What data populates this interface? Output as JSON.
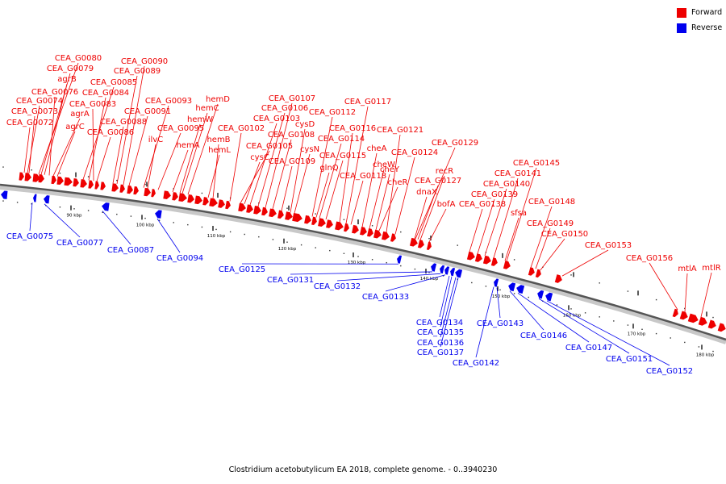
{
  "legend": {
    "forward_label": "Forward",
    "reverse_label": "Reverse",
    "forward_color": "#ee0000",
    "reverse_color": "#0000ee"
  },
  "caption": "Clostridium acetobutylicum EA 2018, complete genome. - 0..3940230",
  "axis": {
    "tick_labels": [
      "90 kbp",
      "100 kbp",
      "110 kbp",
      "120 kbp",
      "130 kbp",
      "140 kbp",
      "150 kbp",
      "160 kbp",
      "170 kbp",
      "180 kbp"
    ]
  },
  "forward_genes": [
    "CEA_G0080",
    "CEA_G0079",
    "agrB",
    "CEA_G0076",
    "CEA_G0074",
    "CEA_G0073",
    "CEA_G0072",
    "agrA",
    "agrC",
    "CEA_G0085",
    "CEA_G0084",
    "CEA_G0083",
    "CEA_G0086",
    "CEA_G0088",
    "CEA_G0090",
    "CEA_G0089",
    "CEA_G0091",
    "CEA_G0093",
    "CEA_G0095",
    "ilvC",
    "hemD",
    "hemC",
    "hemW",
    "hemB",
    "hemA",
    "hemL",
    "CEA_G0107",
    "CEA_G0106",
    "CEA_G0103",
    "CEA_G0102",
    "CEA_G0105",
    "cysC",
    "CEA_G0108",
    "CEA_G0109",
    "cysD",
    "cysN",
    "CEA_G0112",
    "CEA_G0114",
    "CEA_G0116",
    "CEA_G0117",
    "glnQ",
    "CEA_G0115",
    "CEA_G0118",
    "cheA",
    "cheW",
    "cheY",
    "cheR",
    "CEA_G0121",
    "CEA_G0124",
    "CEA_G0129",
    "recR",
    "CEA_G0127",
    "dnaX",
    "bofA",
    "CEA_G0138",
    "CEA_G0139",
    "CEA_G0140",
    "CEA_G0141",
    "CEA_G0145",
    "sfsa",
    "CEA_G0148",
    "CEA_G0149",
    "CEA_G0150",
    "CEA_G0153",
    "CEA_G0156",
    "mtlA",
    "mtlR"
  ],
  "reverse_genes": [
    "CEA_G0075",
    "CEA_G0077",
    "CEA_G0087",
    "CEA_G0094",
    "CEA_G0125",
    "CEA_G0131",
    "CEA_G0132",
    "CEA_G0133",
    "CEA_G0134",
    "CEA_G0135",
    "CEA_G0136",
    "CEA_G0137",
    "CEA_G0142",
    "CEA_G0143",
    "CEA_G0146",
    "CEA_G0147",
    "CEA_G0151",
    "CEA_G0152"
  ]
}
